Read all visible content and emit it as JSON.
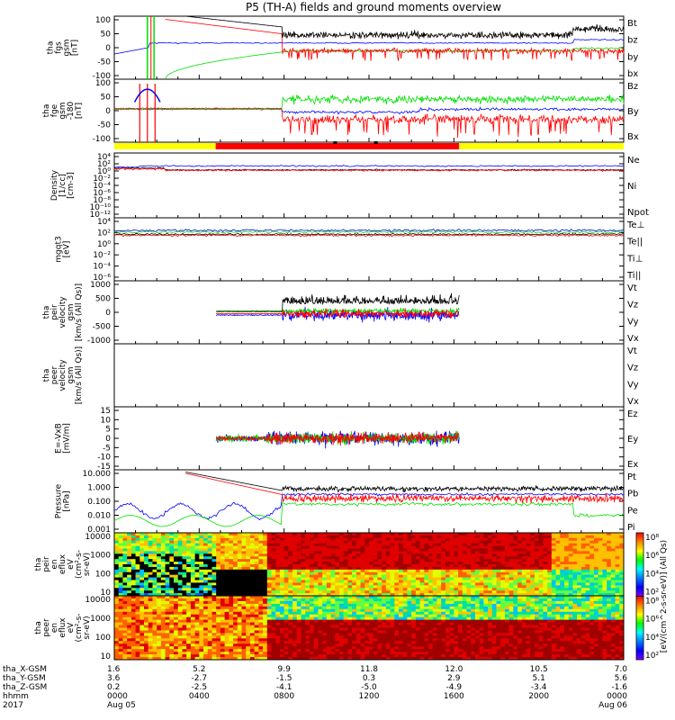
{
  "title": "P5 (TH-A) fields and ground moments overview",
  "colors": {
    "black": "#000000",
    "red": "#ff0000",
    "green": "#00e000",
    "blue": "#0000ff",
    "yellow": "#ffff00"
  },
  "chart_data": [
    {
      "type": "line",
      "id": "fgs",
      "ylabel": [
        "tha",
        "fgs",
        "gsm",
        "[nT]"
      ],
      "yticks": [
        "100",
        "50",
        "0",
        "-50",
        "-100"
      ],
      "ylim": [
        -100,
        100
      ],
      "legend": [
        {
          "name": "Bt",
          "color": "black"
        },
        {
          "name": "bz",
          "color": "red"
        },
        {
          "name": "by",
          "color": "green"
        },
        {
          "name": "bx",
          "color": "blue"
        }
      ]
    },
    {
      "type": "line",
      "id": "fge",
      "ylabel": [
        "tha",
        "fge",
        "gsm",
        "-180",
        "[nT]"
      ],
      "yticks": [
        "100",
        "50",
        "0",
        "-50",
        "-100"
      ],
      "ylim": [
        -120,
        100
      ],
      "legend": [
        {
          "name": "Bz",
          "color": "red"
        },
        {
          "name": "By",
          "color": "green"
        },
        {
          "name": "Bx",
          "color": "blue"
        }
      ]
    },
    {
      "type": "line",
      "id": "density",
      "ylabel": [
        "Density",
        "[1/cc]",
        "[cm-3]"
      ],
      "yticks": [
        "10⁴",
        "10²",
        "10⁰",
        "10⁻²",
        "10⁻⁴",
        "10⁻⁶",
        "10⁻⁸",
        "10⁻¹⁰",
        "10⁻¹²"
      ],
      "log": true,
      "legend": [
        {
          "name": "Ne",
          "color": "red"
        },
        {
          "name": "Ni",
          "color": "black"
        },
        {
          "name": "Npot",
          "color": "blue"
        }
      ]
    },
    {
      "type": "line",
      "id": "temp",
      "ylabel": [
        "mgqt3",
        "[eV]"
      ],
      "yticks": [
        "10⁴",
        "10²",
        "10⁰",
        "10⁻²",
        "10⁻⁴",
        "10⁻⁶"
      ],
      "log": true,
      "legend": [
        {
          "name": "Te⊥",
          "color": "red"
        },
        {
          "name": "Te||",
          "color": "black"
        },
        {
          "name": "Ti⊥",
          "color": "blue"
        },
        {
          "name": "Ti||",
          "color": "green"
        }
      ]
    },
    {
      "type": "line",
      "id": "peir_vel",
      "ylabel": [
        "tha",
        "peir",
        "velocity",
        "gsm",
        "[km/s (All Qs)]"
      ],
      "yticks": [
        "1000",
        "500",
        "0",
        "-500",
        "-1000"
      ],
      "ylim": [
        -1000,
        1000
      ],
      "legend": [
        {
          "name": "Vt",
          "color": "black"
        },
        {
          "name": "Vz",
          "color": "red"
        },
        {
          "name": "Vy",
          "color": "green"
        },
        {
          "name": "Vx",
          "color": "blue"
        }
      ]
    },
    {
      "type": "line",
      "id": "peer_vel",
      "ylabel": [
        "tha",
        "peer",
        "velocity",
        "gsm",
        "[km/s (All Qs)]"
      ],
      "yticks": [],
      "legend": [
        {
          "name": "Vt",
          "color": "black"
        },
        {
          "name": "Vz",
          "color": "red"
        },
        {
          "name": "Vy",
          "color": "green"
        },
        {
          "name": "Vx",
          "color": "blue"
        }
      ]
    },
    {
      "type": "line",
      "id": "efield",
      "ylabel": [
        "E=-VxB",
        "[mV/m]"
      ],
      "yticks": [
        "15",
        "10",
        "5",
        "0",
        "-5",
        "-10",
        "-15"
      ],
      "ylim": [
        -15,
        15
      ],
      "legend": [
        {
          "name": "Ez",
          "color": "red"
        },
        {
          "name": "Ey",
          "color": "green"
        },
        {
          "name": "Ex",
          "color": "blue"
        }
      ]
    },
    {
      "type": "line",
      "id": "pressure",
      "ylabel": [
        "Pressure",
        "[nPa]"
      ],
      "yticks": [
        "10.000",
        "1.000",
        "0.100",
        "0.010",
        "0.001"
      ],
      "log": true,
      "legend": [
        {
          "name": "Pt",
          "color": "black"
        },
        {
          "name": "Pb",
          "color": "red"
        },
        {
          "name": "Pe",
          "color": "green"
        },
        {
          "name": "Pi",
          "color": "blue"
        }
      ]
    },
    {
      "type": "heatmap",
      "id": "peir_spec",
      "ylabel": [
        "tha",
        "peir",
        "en",
        "eflux",
        "eV",
        "(cm²-s-",
        "sr-eV)"
      ],
      "yticks": [
        "10000",
        "1000",
        "100",
        "10"
      ],
      "log": true
    },
    {
      "type": "heatmap",
      "id": "peer_spec",
      "ylabel": [
        "tha",
        "peer",
        "en",
        "eflux",
        "eV",
        "(cm²-s-",
        "sr-eV)"
      ],
      "yticks": [
        "10000",
        "1000",
        "100",
        "10"
      ],
      "log": true
    }
  ],
  "colorbar": {
    "ticks": [
      "10⁸",
      "10⁶",
      "10⁴",
      "10²",
      "10⁸",
      "10⁶",
      "10⁴",
      "10²"
    ],
    "label": "[eV/(cm^2-s-sr-eV)] (All Qs)"
  },
  "xaxis": {
    "row_labels": [
      "tha_X-GSM",
      "tha_Y-GSM",
      "tha_Z-GSM",
      "hhmm",
      "2017"
    ],
    "columns": [
      {
        "vals": [
          "1.6",
          "3.6",
          "0.2",
          "0000",
          "Aug 05"
        ]
      },
      {
        "vals": [
          "5.2",
          "-2.7",
          "-2.5",
          "0400",
          ""
        ]
      },
      {
        "vals": [
          "9.9",
          "-1.5",
          "-4.1",
          "0800",
          ""
        ]
      },
      {
        "vals": [
          "11.8",
          "0.3",
          "-5.0",
          "1200",
          ""
        ]
      },
      {
        "vals": [
          "12.0",
          "2.9",
          "-4.9",
          "1600",
          ""
        ]
      },
      {
        "vals": [
          "10.5",
          "5.1",
          "-3.4",
          "2000",
          ""
        ]
      },
      {
        "vals": [
          "7.0",
          "5.6",
          "-1.6",
          "0000",
          "Aug 06"
        ]
      }
    ]
  }
}
